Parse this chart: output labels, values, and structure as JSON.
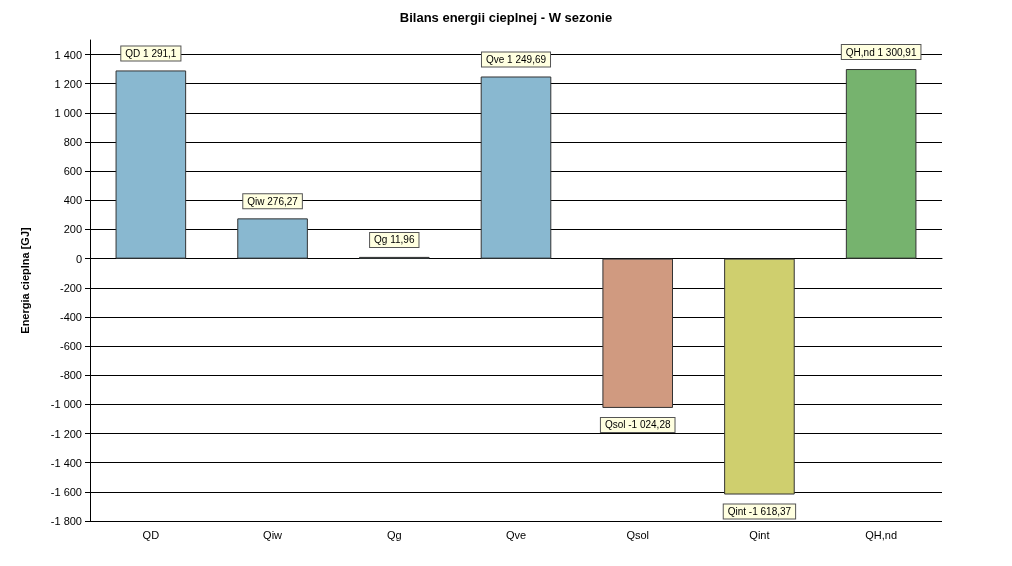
{
  "chart_data": {
    "type": "bar",
    "title": "Bilans energii cieplnej - W sezonie",
    "ylabel": "Energia cieplna [GJ]",
    "categories": [
      "QD",
      "Qiw",
      "Qg",
      "Qve",
      "Qsol",
      "Qint",
      "QH,nd"
    ],
    "values": [
      1291.1,
      276.27,
      11.96,
      1249.69,
      -1024.28,
      -1618.37,
      1300.91
    ],
    "colors": [
      "#89b8d0",
      "#89b8d0",
      "#89b8d0",
      "#89b8d0",
      "#d09a80",
      "#cfcf6e",
      "#76b36e"
    ],
    "value_labels": [
      "QD 1 291,1",
      "Qiw 276,27",
      "Qg 11,96",
      "Qve 1 249,69",
      "Qsol -1 024,28",
      "Qint -1 618,37",
      "QH,nd 1 300,91"
    ],
    "ylim": [
      -1800,
      1500
    ],
    "yticks": [
      {
        "value": -1800,
        "label": "-1 800"
      },
      {
        "value": -1600,
        "label": "-1 600"
      },
      {
        "value": -1400,
        "label": "-1 400"
      },
      {
        "value": -1200,
        "label": "-1 200"
      },
      {
        "value": -1000,
        "label": "-1 000"
      },
      -800,
      -600,
      -400,
      -200,
      0,
      200,
      400,
      600,
      800,
      {
        "value": 1000,
        "label": "1 000"
      },
      {
        "value": 1200,
        "label": "1 200"
      },
      {
        "value": 1400,
        "label": "1 400"
      }
    ],
    "grid": "y"
  }
}
